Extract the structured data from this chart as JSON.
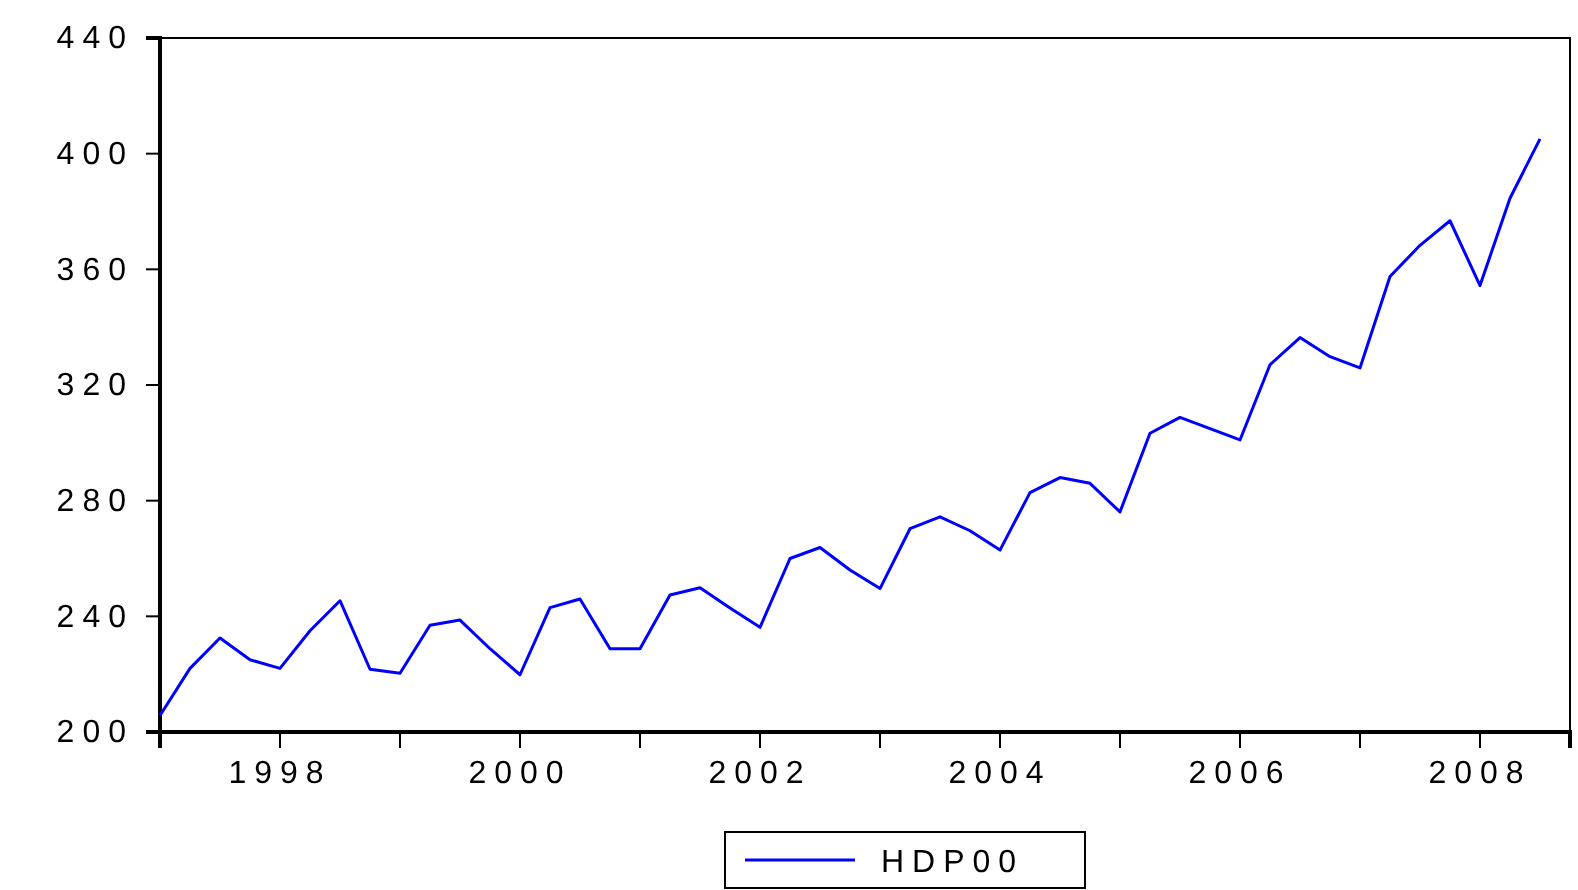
{
  "chart_data": {
    "type": "line",
    "x": [
      1997,
      1997.25,
      1997.5,
      1997.75,
      1998,
      1998.25,
      1998.5,
      1998.75,
      1999,
      1999.25,
      1999.5,
      1999.75,
      2000,
      2000.25,
      2000.5,
      2000.75,
      2001,
      2001.25,
      2001.5,
      2001.75,
      2002,
      2002.25,
      2002.5,
      2002.75,
      2003,
      2003.25,
      2003.5,
      2003.75,
      2004,
      2004.25,
      2004.5,
      2004.75,
      2005,
      2005.25,
      2005.5,
      2005.75,
      2006,
      2006.25,
      2006.5,
      2006.75,
      2007,
      2007.25,
      2007.5,
      2007.75,
      2008,
      2008.25,
      2008.5
    ],
    "series": [
      {
        "name": "HDP00",
        "color": "#0000ff",
        "values": [
          205.7,
          222,
          232.5,
          225,
          222,
          235,
          245.4,
          221.7,
          220.3,
          236.9,
          238.7,
          228.8,
          219.8,
          243,
          246,
          228.8,
          228.8,
          247.4,
          249.9,
          242.9,
          236.2,
          260,
          263.8,
          256,
          249.6,
          270.3,
          274.4,
          269.6,
          262.9,
          282.8,
          288,
          286,
          276.1,
          303.3,
          308.8,
          304.9,
          301,
          327,
          336.4,
          329.8,
          325.9,
          357.5,
          368.3,
          376.8,
          354.4,
          384.6,
          405.1
        ]
      }
    ],
    "xlim": [
      1997,
      2008.75
    ],
    "xticks": [
      {
        "value": 1997,
        "label": null
      },
      {
        "value": 1998,
        "label": "1998"
      },
      {
        "value": 1999,
        "label": null
      },
      {
        "value": 2000,
        "label": "2000"
      },
      {
        "value": 2001,
        "label": null
      },
      {
        "value": 2002,
        "label": "2002"
      },
      {
        "value": 2003,
        "label": null
      },
      {
        "value": 2004,
        "label": "2004"
      },
      {
        "value": 2005,
        "label": null
      },
      {
        "value": 2006,
        "label": "2006"
      },
      {
        "value": 2007,
        "label": null
      },
      {
        "value": 2008,
        "label": "2008"
      }
    ],
    "ylim": [
      200,
      440
    ],
    "yticks": [
      200,
      240,
      280,
      320,
      360,
      400,
      440
    ],
    "grid": false,
    "legend": "bottom",
    "marker": "none",
    "line_style": "solid"
  }
}
